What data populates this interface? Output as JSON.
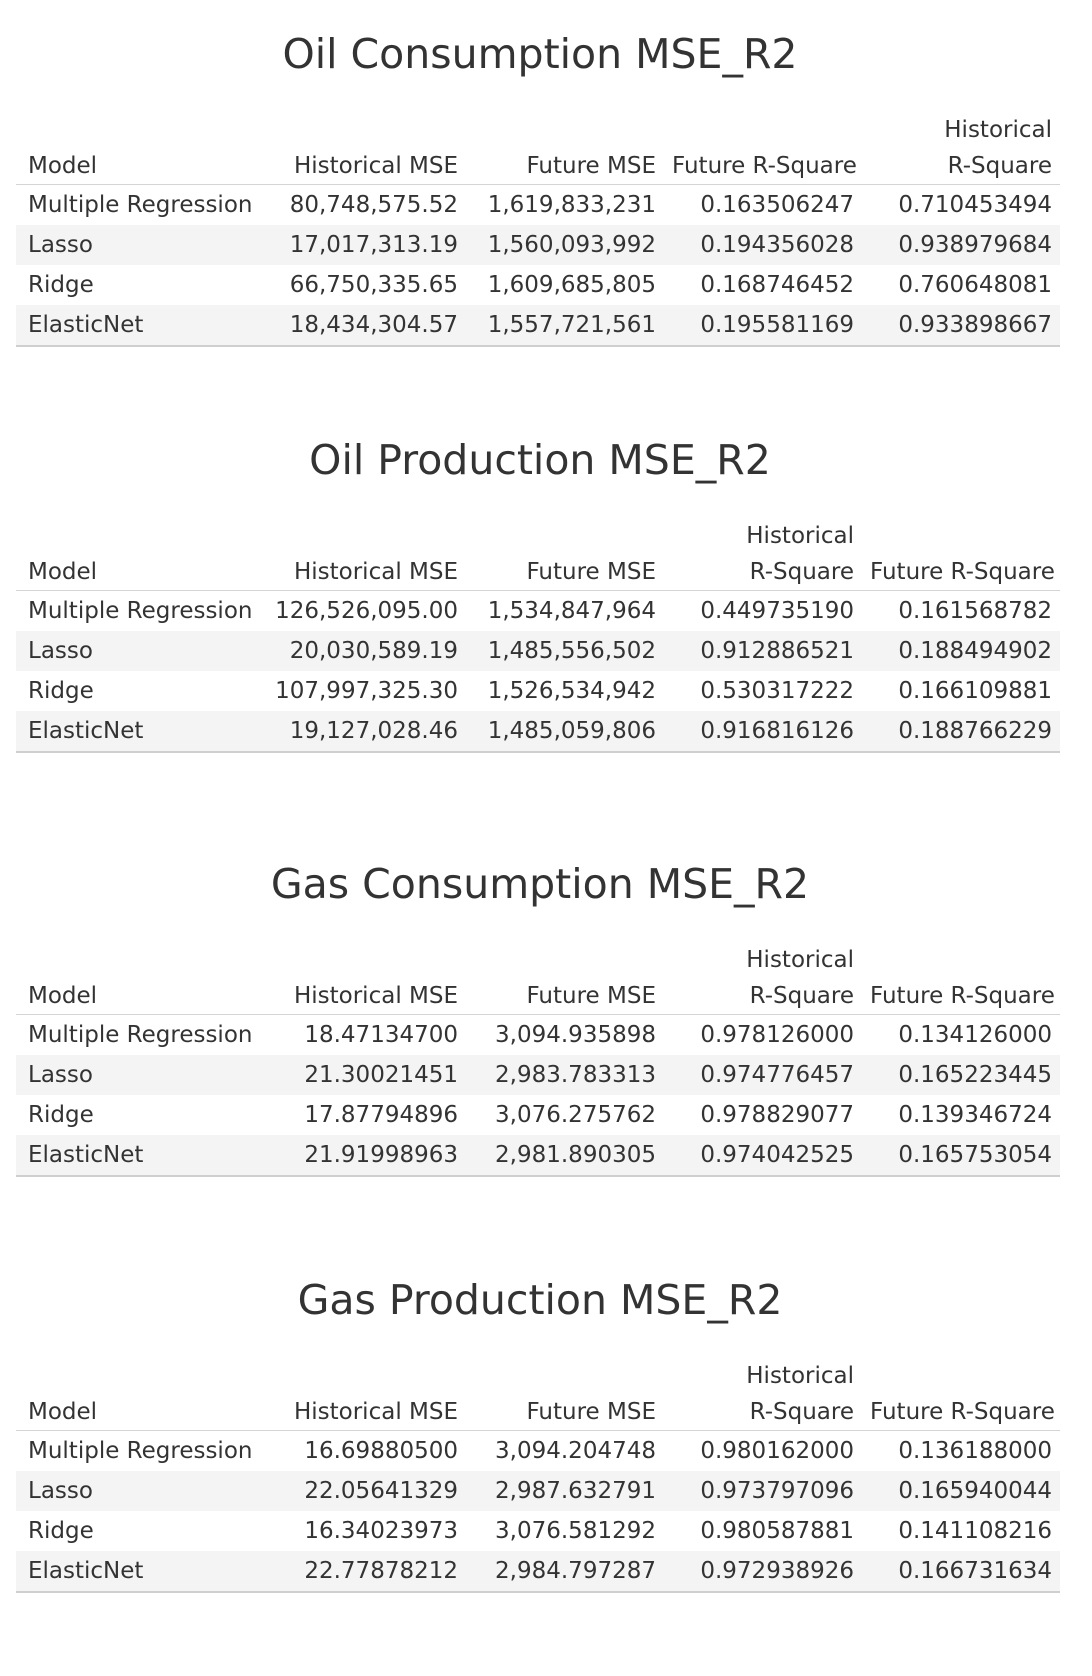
{
  "chart_data": [
    {
      "type": "table",
      "title": "Oil Consumption MSE_R2",
      "columns": [
        "Model",
        "Historical MSE",
        "Future MSE",
        "Future R-Square",
        "Historical R-Square"
      ],
      "rows": [
        [
          "Multiple Regression",
          "80,748,575.52",
          "1,619,833,231",
          "0.163506247",
          "0.710453494"
        ],
        [
          "Lasso",
          "17,017,313.19",
          "1,560,093,992",
          "0.194356028",
          "0.938979684"
        ],
        [
          "Ridge",
          "66,750,335.65",
          "1,609,685,805",
          "0.168746452",
          "0.760648081"
        ],
        [
          "ElasticNet",
          "18,434,304.57",
          "1,557,721,561",
          "0.195581169",
          "0.933898667"
        ]
      ]
    },
    {
      "type": "table",
      "title": "Oil Production MSE_R2",
      "columns": [
        "Model",
        "Historical MSE",
        "Future MSE",
        "Historical R-Square",
        "Future R-Square"
      ],
      "rows": [
        [
          "Multiple Regression",
          "126,526,095.00",
          "1,534,847,964",
          "0.449735190",
          "0.161568782"
        ],
        [
          "Lasso",
          "20,030,589.19",
          "1,485,556,502",
          "0.912886521",
          "0.188494902"
        ],
        [
          "Ridge",
          "107,997,325.30",
          "1,526,534,942",
          "0.530317222",
          "0.166109881"
        ],
        [
          "ElasticNet",
          "19,127,028.46",
          "1,485,059,806",
          "0.916816126",
          "0.188766229"
        ]
      ]
    },
    {
      "type": "table",
      "title": "Gas Consumption MSE_R2",
      "columns": [
        "Model",
        "Historical MSE",
        "Future MSE",
        "Historical R-Square",
        "Future R-Square"
      ],
      "rows": [
        [
          "Multiple Regression",
          "18.47134700",
          "3,094.935898",
          "0.978126000",
          "0.134126000"
        ],
        [
          "Lasso",
          "21.30021451",
          "2,983.783313",
          "0.974776457",
          "0.165223445"
        ],
        [
          "Ridge",
          "17.87794896",
          "3,076.275762",
          "0.978829077",
          "0.139346724"
        ],
        [
          "ElasticNet",
          "21.91998963",
          "2,981.890305",
          "0.974042525",
          "0.165753054"
        ]
      ]
    },
    {
      "type": "table",
      "title": "Gas Production MSE_R2",
      "columns": [
        "Model",
        "Historical MSE",
        "Future MSE",
        "Historical R-Square",
        "Future R-Square"
      ],
      "rows": [
        [
          "Multiple Regression",
          "16.69880500",
          "3,094.204748",
          "0.980162000",
          "0.136188000"
        ],
        [
          "Lasso",
          "22.05641329",
          "2,987.632791",
          "0.973797096",
          "0.165940044"
        ],
        [
          "Ridge",
          "16.34023973",
          "3,076.581292",
          "0.980587881",
          "0.141108216"
        ],
        [
          "ElasticNet",
          "22.77878212",
          "2,984.797287",
          "0.972938926",
          "0.166731634"
        ]
      ]
    }
  ],
  "colors": {
    "text": "#333333",
    "row_band": "#f4f4f4",
    "rule": "#d4d4d4"
  }
}
